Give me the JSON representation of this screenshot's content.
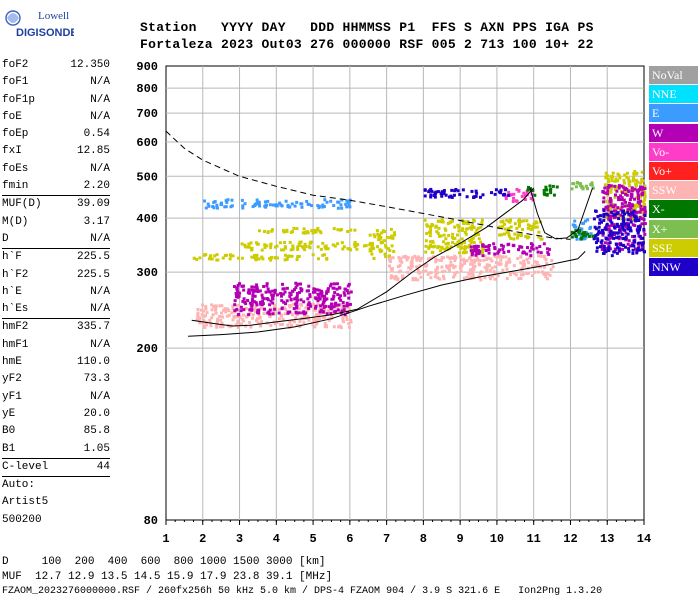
{
  "logo": {
    "line1": "Lowell",
    "line2": "DIGISONDE"
  },
  "header": {
    "line1": "Station   YYYY DAY   DDD HHMMSS P1  FFS S AXN PPS IGA PS",
    "line2": "Fortaleza 2023 Out03 276 000000 RSF 005 2 713 100 10+ 22"
  },
  "params": [
    {
      "label": "foF2",
      "value": "12.350"
    },
    {
      "label": "foF1",
      "value": "N/A"
    },
    {
      "label": "foF1p",
      "value": "N/A"
    },
    {
      "label": "foE",
      "value": "N/A"
    },
    {
      "label": "foEp",
      "value": "0.54"
    },
    {
      "label": "fxI",
      "value": "12.85"
    },
    {
      "label": "foEs",
      "value": "N/A"
    },
    {
      "label": "fmin",
      "value": "2.20",
      "sep": true
    },
    {
      "label": "MUF(D)",
      "value": "39.09"
    },
    {
      "label": "M(D)",
      "value": "3.17"
    },
    {
      "label": "D",
      "value": "N/A",
      "sep": true
    },
    {
      "label": "h`F",
      "value": "225.5"
    },
    {
      "label": "h`F2",
      "value": "225.5"
    },
    {
      "label": "h`E",
      "value": "N/A"
    },
    {
      "label": "h`Es",
      "value": "N/A",
      "sep": true
    },
    {
      "label": "hmF2",
      "value": "335.7"
    },
    {
      "label": "hmF1",
      "value": "N/A"
    },
    {
      "label": "hmE",
      "value": "110.0"
    },
    {
      "label": "yF2",
      "value": "73.3"
    },
    {
      "label": "yF1",
      "value": "N/A"
    },
    {
      "label": "yE",
      "value": "20.0"
    },
    {
      "label": "B0",
      "value": "85.8"
    },
    {
      "label": "B1",
      "value": "1.05",
      "sep": true
    },
    {
      "label": "C-level",
      "value": "44",
      "sep": true
    },
    {
      "label": "Auto:",
      "value": ""
    },
    {
      "label": "Artist5",
      "value": ""
    },
    {
      "label": "500200",
      "value": ""
    }
  ],
  "bottom": {
    "line1": "D     100  200  400  600  800 1000 1500 3000 [km]",
    "line2": "MUF  12.7 12.9 13.5 14.5 15.9 17.9 23.8 39.1 [MHz]",
    "line3": "FZAOM_2023276000000.RSF / 260fx256h 50 kHz 5.0 km / DPS-4 FZAOM 904 / 3.9 S 321.6 E   Ion2Png 1.3.20"
  },
  "legend": [
    {
      "label": "NoVal",
      "color": "#a0a0a0"
    },
    {
      "label": "NNE",
      "color": "#00e0ff"
    },
    {
      "label": "E",
      "color": "#3c9bff"
    },
    {
      "label": "W",
      "color": "#b400b4"
    },
    {
      "label": "Vo-",
      "color": "#ff3cc8"
    },
    {
      "label": "Vo+",
      "color": "#ff2020"
    },
    {
      "label": "SSW",
      "color": "#ffb4b4"
    },
    {
      "label": "X-",
      "color": "#007800"
    },
    {
      "label": "X+",
      "color": "#7cbe50"
    },
    {
      "label": "SSE",
      "color": "#cccc00"
    },
    {
      "label": "NNW",
      "color": "#1e00c8"
    }
  ],
  "chart_data": {
    "type": "scatter",
    "xlabel": "",
    "ylabel": "",
    "xlim": [
      1,
      14
    ],
    "ylim": [
      80,
      900
    ],
    "yscale": "log",
    "x_ticks": [
      1,
      2,
      3,
      4,
      5,
      6,
      7,
      8,
      9,
      10,
      11,
      12,
      13,
      14
    ],
    "y_ticks": [
      80,
      200,
      300,
      400,
      500,
      600,
      700,
      800,
      900
    ],
    "grid": true,
    "clusters": [
      {
        "mode": "SSE",
        "x": [
          1.7,
          5.5
        ],
        "y": [
          322,
          332
        ]
      },
      {
        "mode": "SSE",
        "x": [
          3.0,
          6.5
        ],
        "y": [
          340,
          355
        ]
      },
      {
        "mode": "SSE",
        "x": [
          3.5,
          6.2
        ],
        "y": [
          372,
          382
        ]
      },
      {
        "mode": "SSE",
        "x": [
          6.5,
          7.2
        ],
        "y": [
          325,
          380
        ]
      },
      {
        "mode": "SSE",
        "x": [
          8.0,
          9.6
        ],
        "y": [
          335,
          400
        ]
      },
      {
        "mode": "SSE",
        "x": [
          10.0,
          11.2
        ],
        "y": [
          360,
          400
        ]
      },
      {
        "mode": "SSE",
        "x": [
          12.9,
          14.0
        ],
        "y": [
          400,
          520
        ]
      },
      {
        "mode": "E",
        "x": [
          2.0,
          6.0
        ],
        "y": [
          425,
          445
        ]
      },
      {
        "mode": "E",
        "x": [
          12.0,
          12.6
        ],
        "y": [
          360,
          400
        ]
      },
      {
        "mode": "SSW",
        "x": [
          1.8,
          6.0
        ],
        "y": [
          225,
          255
        ]
      },
      {
        "mode": "SSW",
        "x": [
          7.0,
          11.5
        ],
        "y": [
          290,
          330
        ]
      },
      {
        "mode": "W",
        "x": [
          2.8,
          6.0
        ],
        "y": [
          240,
          285
        ]
      },
      {
        "mode": "W",
        "x": [
          9.2,
          11.4
        ],
        "y": [
          330,
          352
        ]
      },
      {
        "mode": "W",
        "x": [
          12.8,
          14.0
        ],
        "y": [
          340,
          480
        ]
      },
      {
        "mode": "Vo-",
        "x": [
          10.2,
          11.0
        ],
        "y": [
          440,
          470
        ]
      },
      {
        "mode": "NNW",
        "x": [
          8.0,
          10.5
        ],
        "y": [
          450,
          470
        ]
      },
      {
        "mode": "NNW",
        "x": [
          12.6,
          14.0
        ],
        "y": [
          330,
          420
        ]
      },
      {
        "mode": "X-",
        "x": [
          10.8,
          11.6
        ],
        "y": [
          455,
          480
        ]
      },
      {
        "mode": "X-",
        "x": [
          12.0,
          12.6
        ],
        "y": [
          360,
          380
        ]
      },
      {
        "mode": "X+",
        "x": [
          12.0,
          12.6
        ],
        "y": [
          470,
          490
        ]
      }
    ],
    "lines": [
      {
        "name": "O-trace",
        "style": "solid",
        "points": [
          [
            1.7,
            232
          ],
          [
            2.3,
            228
          ],
          [
            2.8,
            225
          ],
          [
            3.3,
            226
          ],
          [
            4,
            230
          ],
          [
            4.7,
            234
          ],
          [
            5.5,
            239
          ],
          [
            6.2,
            246
          ],
          [
            7,
            270
          ],
          [
            7.7,
            300
          ],
          [
            8.3,
            325
          ],
          [
            9,
            350
          ],
          [
            9.7,
            380
          ],
          [
            10.3,
            415
          ],
          [
            10.7,
            440
          ],
          [
            11.0,
            470
          ]
        ]
      },
      {
        "name": "profile",
        "style": "solid",
        "points": [
          [
            1.6,
            213
          ],
          [
            2.5,
            215
          ],
          [
            3.5,
            218
          ],
          [
            4.5,
            224
          ],
          [
            5.5,
            234
          ],
          [
            6.5,
            250
          ],
          [
            7.5,
            265
          ],
          [
            8.5,
            280
          ],
          [
            9.5,
            292
          ],
          [
            10.5,
            302
          ],
          [
            11.5,
            313
          ],
          [
            12.2,
            322
          ],
          [
            12.4,
            335
          ]
        ]
      },
      {
        "name": "MUF",
        "style": "dashed",
        "points": [
          [
            1,
            636
          ],
          [
            1.5,
            580
          ],
          [
            2,
            545
          ],
          [
            3,
            500
          ],
          [
            4,
            474
          ],
          [
            5,
            452
          ],
          [
            6,
            440
          ],
          [
            7,
            425
          ],
          [
            8,
            410
          ],
          [
            9,
            395
          ],
          [
            10,
            380
          ],
          [
            10.5,
            372
          ],
          [
            11,
            366
          ],
          [
            11.5,
            360
          ],
          [
            12,
            357
          ]
        ]
      },
      {
        "name": "X-trace",
        "style": "solid",
        "points": [
          [
            10.9,
            470
          ],
          [
            11.1,
            410
          ],
          [
            11.3,
            370
          ],
          [
            11.6,
            358
          ],
          [
            11.9,
            360
          ],
          [
            12.2,
            375
          ],
          [
            12.4,
            420
          ],
          [
            12.6,
            470
          ]
        ]
      }
    ]
  }
}
